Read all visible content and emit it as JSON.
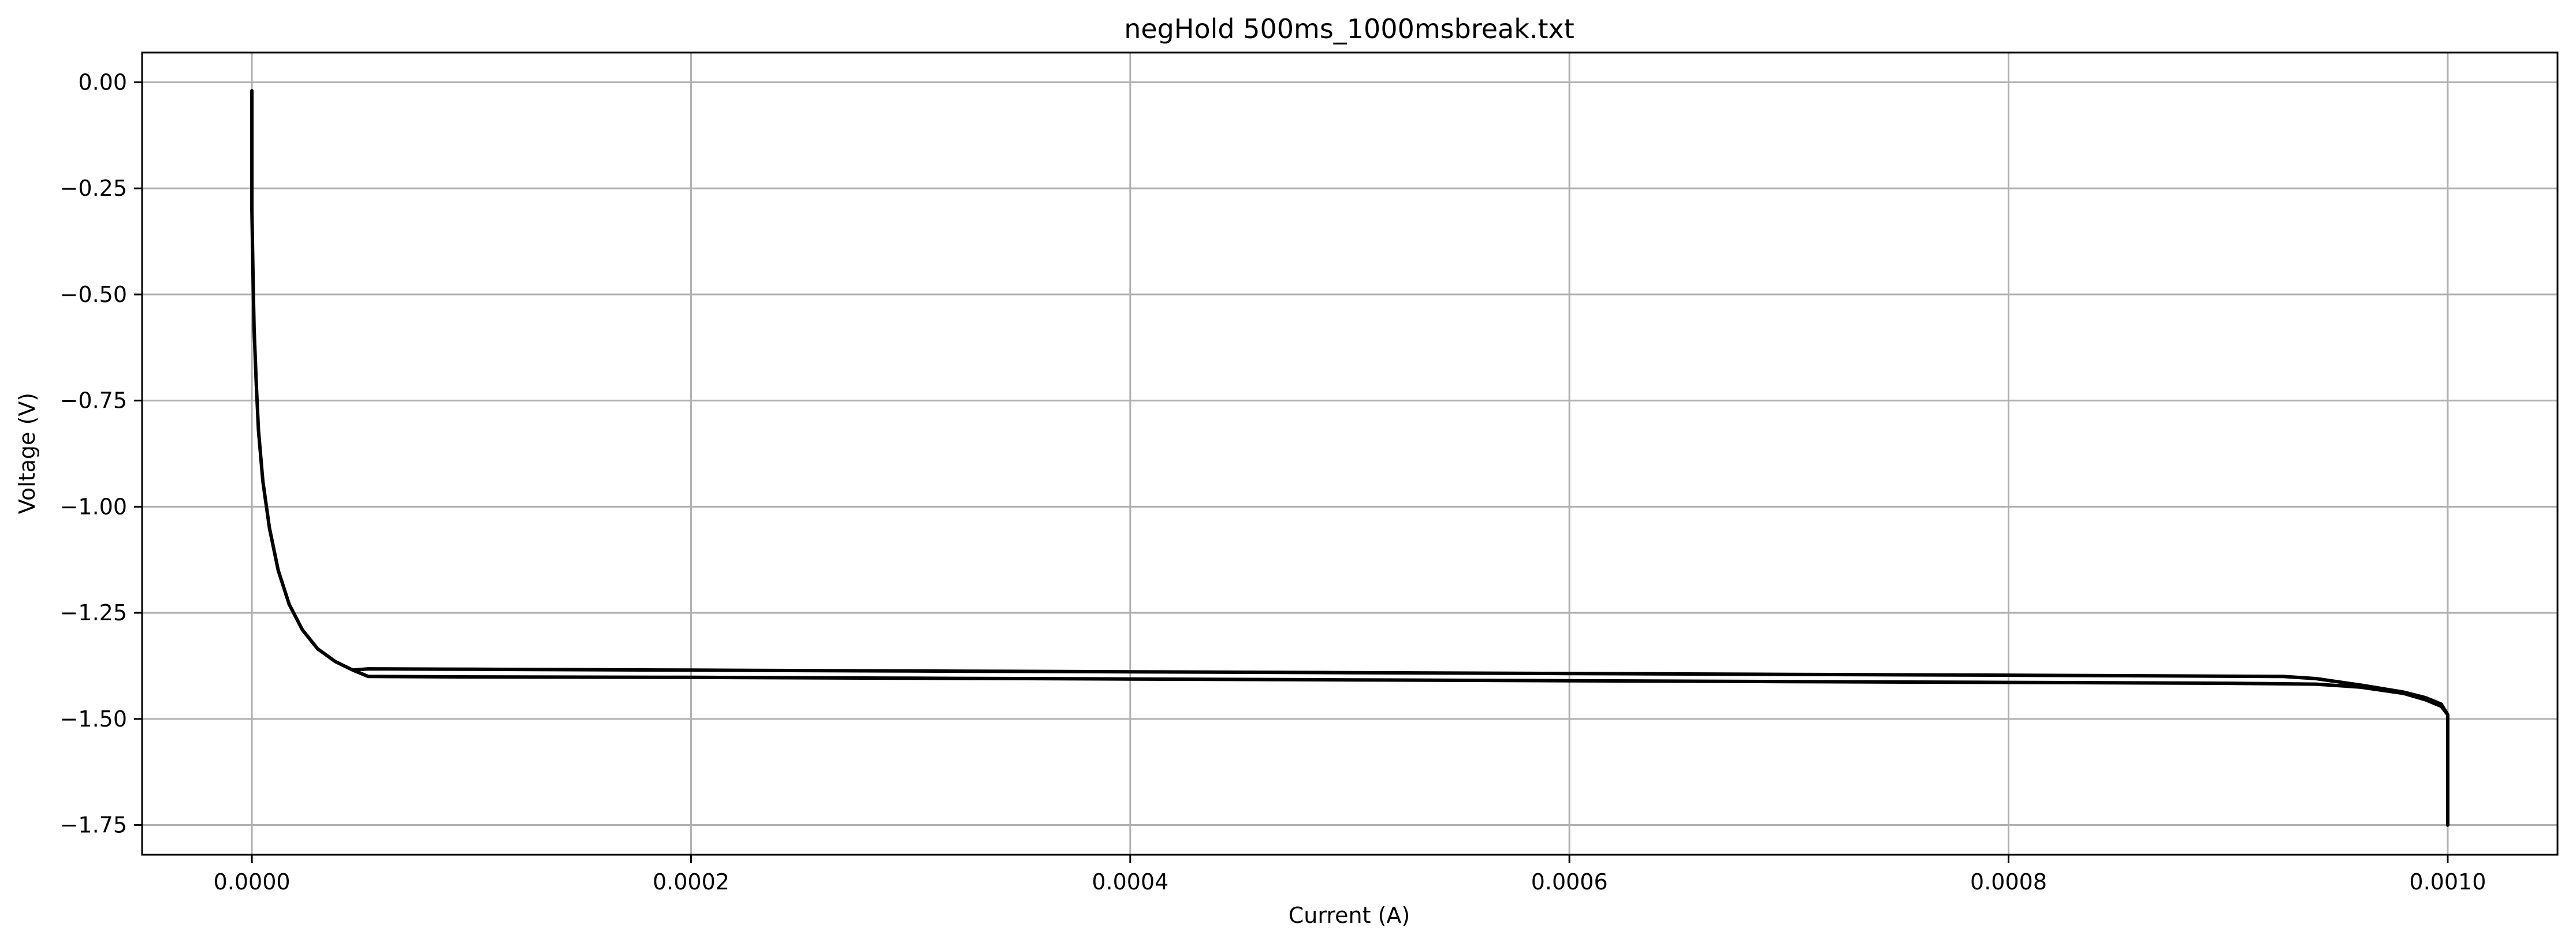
{
  "chart_data": {
    "type": "line",
    "title": "negHold 500ms_1000msbreak.txt",
    "xlabel": "Current (A)",
    "ylabel": "Voltage (V)",
    "xlim": [
      -5e-05,
      0.00105
    ],
    "ylim": [
      -1.82,
      0.07
    ],
    "x_ticks": [
      0.0,
      0.0002,
      0.0004,
      0.0006,
      0.0008,
      0.001
    ],
    "x_tick_labels": [
      "0.0000",
      "0.0002",
      "0.0004",
      "0.0006",
      "0.0008",
      "0.0010"
    ],
    "y_ticks": [
      0.0,
      -0.25,
      -0.5,
      -0.75,
      -1.0,
      -1.25,
      -1.5,
      -1.75
    ],
    "y_tick_labels": [
      "0.00",
      "−0.25",
      "−0.50",
      "−0.75",
      "−1.00",
      "−1.25",
      "−1.50",
      "−1.75"
    ],
    "grid": true,
    "line_color": "#000000",
    "series": [
      {
        "values": [
          [
            0.0,
            -0.02
          ],
          [
            0.0,
            -0.3
          ],
          [
            5e-07,
            -0.45
          ],
          [
            1e-06,
            -0.58
          ],
          [
            2e-06,
            -0.71
          ],
          [
            3e-06,
            -0.82
          ],
          [
            5e-06,
            -0.94
          ],
          [
            8e-06,
            -1.05
          ],
          [
            1.2e-05,
            -1.15
          ],
          [
            1.7e-05,
            -1.23
          ],
          [
            2.3e-05,
            -1.29
          ],
          [
            3e-05,
            -1.335
          ],
          [
            3.8e-05,
            -1.365
          ],
          [
            4.6e-05,
            -1.385
          ],
          [
            5.3e-05,
            -1.4
          ],
          [
            0.0001,
            -1.401
          ],
          [
            0.0002,
            -1.402
          ],
          [
            0.0003,
            -1.404
          ],
          [
            0.0004,
            -1.406
          ],
          [
            0.0005,
            -1.408
          ],
          [
            0.0006,
            -1.41
          ],
          [
            0.0007,
            -1.412
          ],
          [
            0.0008,
            -1.414
          ],
          [
            0.0009,
            -1.416
          ],
          [
            0.00094,
            -1.418
          ],
          [
            0.00096,
            -1.425
          ],
          [
            0.00098,
            -1.44
          ],
          [
            0.00099,
            -1.455
          ],
          [
            0.000997,
            -1.47
          ],
          [
            0.001,
            -1.49
          ],
          [
            0.001,
            -1.75
          ],
          [
            0.001,
            -1.49
          ],
          [
            0.000997,
            -1.465
          ],
          [
            0.00099,
            -1.45
          ],
          [
            0.00098,
            -1.437
          ],
          [
            0.00096,
            -1.42
          ],
          [
            0.00094,
            -1.405
          ],
          [
            0.000925,
            -1.4
          ],
          [
            0.0008,
            -1.397
          ],
          [
            0.0007,
            -1.395
          ],
          [
            0.0006,
            -1.393
          ],
          [
            0.0005,
            -1.391
          ],
          [
            0.0004,
            -1.389
          ],
          [
            0.0003,
            -1.387
          ],
          [
            0.0002,
            -1.385
          ],
          [
            0.0001,
            -1.383
          ],
          [
            5.3e-05,
            -1.382
          ],
          [
            4.6e-05,
            -1.385
          ]
        ]
      }
    ]
  }
}
